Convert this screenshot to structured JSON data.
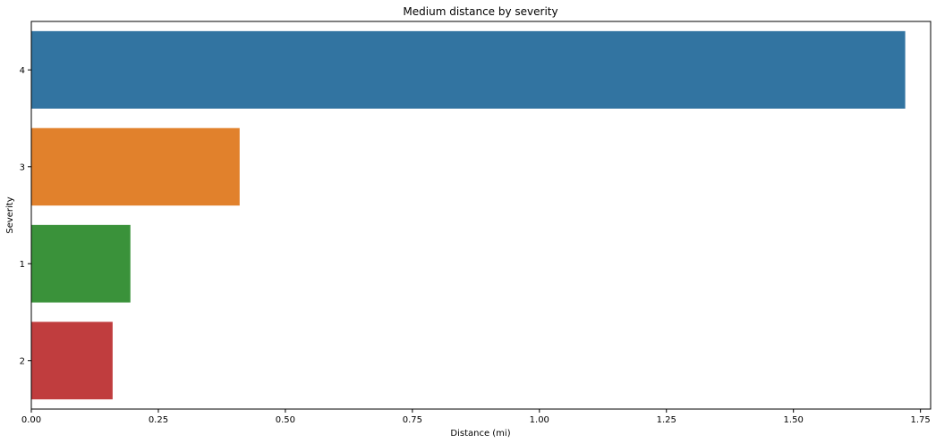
{
  "chart_data": {
    "type": "bar",
    "orientation": "horizontal",
    "title": "Medium distance by severity",
    "xlabel": "Distance (mi)",
    "ylabel": "Severity",
    "categories": [
      "4",
      "3",
      "1",
      "2"
    ],
    "values": [
      1.72,
      0.41,
      0.195,
      0.16
    ],
    "xlim": [
      0,
      1.77
    ],
    "xticks": [
      0,
      0.25,
      0.5,
      0.75,
      1.0,
      1.25,
      1.5,
      1.75
    ],
    "xtick_labels": [
      "0.00",
      "0.25",
      "0.50",
      "0.75",
      "1.00",
      "1.25",
      "1.50",
      "1.75"
    ],
    "colors": [
      "#3274a1",
      "#e1812c",
      "#3a923a",
      "#c03d3e"
    ],
    "grid": false,
    "legend": false
  }
}
